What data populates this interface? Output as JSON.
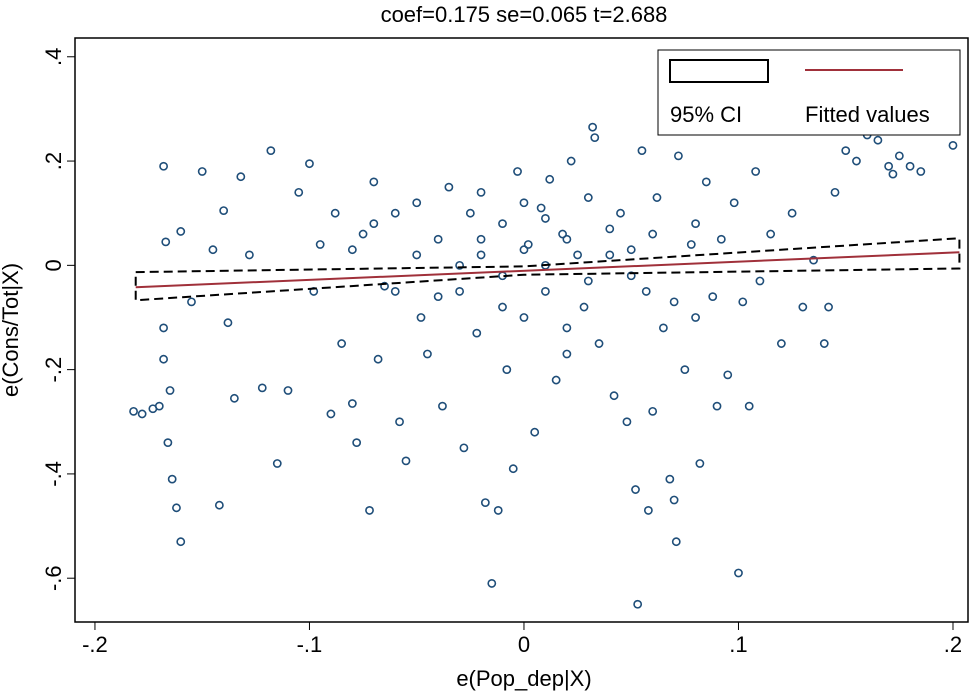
{
  "chart_data": {
    "type": "scatter",
    "title": "coef=0.175 se=0.065 t=2.688",
    "x_label": "e(Pop_dep|X)",
    "y_label": "e(Cons/Tot|X)",
    "xlim": [
      -0.2093,
      0.207
    ],
    "ylim": [
      -0.684,
      0.436
    ],
    "xticks": [
      {
        "value": -0.2,
        "label": "-.2"
      },
      {
        "value": -0.1,
        "label": "-.1"
      },
      0,
      {
        "value": 0.1,
        "label": ".1"
      },
      {
        "value": 0.2,
        "label": ".2"
      }
    ],
    "yticks": [
      {
        "value": 0.4,
        "label": ".4"
      },
      {
        "value": 0.2,
        "label": ".2"
      },
      0,
      {
        "value": -0.2,
        "label": "-.2"
      },
      {
        "value": -0.4,
        "label": "-.4"
      },
      {
        "value": -0.6,
        "label": "-.6"
      }
    ],
    "series": [
      {
        "name": "e(Cons/Tot|X)",
        "color": "#1f4e79",
        "x": [
          -0.182,
          -0.178,
          -0.173,
          -0.17,
          -0.168,
          -0.167,
          -0.168,
          -0.168,
          -0.166,
          -0.164,
          -0.162,
          -0.16,
          -0.165,
          -0.16,
          -0.155,
          -0.15,
          -0.145,
          -0.142,
          -0.14,
          -0.138,
          -0.135,
          -0.132,
          -0.128,
          -0.122,
          -0.118,
          -0.115,
          -0.11,
          -0.105,
          -0.1,
          -0.098,
          -0.095,
          -0.09,
          -0.088,
          -0.085,
          -0.08,
          -0.078,
          -0.075,
          -0.072,
          -0.07,
          -0.068,
          -0.065,
          -0.06,
          -0.058,
          -0.055,
          -0.05,
          -0.048,
          -0.045,
          -0.04,
          -0.038,
          -0.035,
          -0.03,
          -0.028,
          -0.025,
          -0.022,
          -0.02,
          -0.018,
          -0.015,
          -0.012,
          -0.01,
          -0.008,
          -0.005,
          -0.003,
          0,
          0.002,
          0.005,
          0.008,
          0.01,
          0.012,
          0.015,
          0.018,
          0.02,
          0.022,
          0.025,
          0.028,
          0.03,
          0.032,
          0.033,
          0.035,
          0.04,
          0.042,
          0.045,
          0.048,
          0.05,
          0.052,
          0.053,
          0.055,
          0.057,
          0.058,
          0.06,
          0.062,
          0.065,
          0.068,
          0.07,
          0.071,
          0.072,
          0.075,
          0.078,
          0.08,
          0.082,
          0.085,
          0.088,
          0.09,
          0.092,
          0.095,
          0.098,
          0.1,
          0.102,
          0.105,
          0.108,
          0.11,
          0.115,
          0.12,
          0.125,
          0.13,
          0.135,
          0.14,
          0.142,
          0.145,
          0.15,
          0.155,
          0.16,
          0.165,
          0.17,
          0.172,
          0.175,
          0.18,
          0.185,
          0.2,
          -0.03,
          -0.02,
          -0.01,
          0,
          0.01,
          0.02,
          0.03,
          -0.04,
          0.04,
          -0.05,
          0.05,
          -0.06,
          0.06,
          -0.07,
          0.07,
          -0.08,
          0.08,
          0,
          -0.02,
          0.02,
          0.01,
          -0.01
        ],
        "values": [
          -0.28,
          -0.285,
          -0.275,
          -0.27,
          0.19,
          0.045,
          -0.12,
          -0.18,
          -0.34,
          -0.41,
          -0.465,
          -0.53,
          -0.24,
          0.065,
          -0.07,
          0.18,
          0.03,
          -0.46,
          0.105,
          -0.11,
          -0.255,
          0.17,
          0.02,
          -0.235,
          0.22,
          -0.38,
          -0.24,
          0.14,
          0.195,
          -0.05,
          0.04,
          -0.285,
          0.1,
          -0.15,
          -0.265,
          -0.34,
          0.06,
          -0.47,
          0.16,
          -0.18,
          -0.04,
          0.1,
          -0.3,
          -0.375,
          0.12,
          -0.1,
          -0.17,
          0.05,
          -0.27,
          0.15,
          -0.05,
          -0.35,
          0.1,
          -0.13,
          0.02,
          -0.455,
          -0.61,
          -0.47,
          0.08,
          -0.2,
          -0.39,
          0.18,
          -0.1,
          0.04,
          -0.32,
          0.11,
          -0.05,
          0.165,
          -0.22,
          0.06,
          -0.12,
          0.2,
          0.02,
          -0.08,
          0.13,
          0.265,
          0.245,
          -0.15,
          0.07,
          -0.25,
          0.1,
          -0.3,
          0.03,
          -0.43,
          -0.65,
          0.22,
          -0.05,
          -0.47,
          -0.28,
          0.13,
          -0.12,
          -0.41,
          -0.45,
          -0.53,
          0.21,
          -0.2,
          0.04,
          -0.1,
          -0.38,
          0.16,
          -0.06,
          -0.27,
          0.05,
          -0.21,
          0.12,
          -0.59,
          -0.07,
          -0.27,
          0.18,
          -0.03,
          0.06,
          -0.15,
          0.1,
          -0.08,
          0.01,
          -0.15,
          -0.08,
          0.14,
          0.22,
          0.2,
          0.25,
          0.24,
          0.19,
          0.175,
          0.21,
          0.19,
          0.18,
          0.23,
          0,
          0.05,
          -0.02,
          0.03,
          0,
          0.05,
          -0.03,
          -0.06,
          0.02,
          0.02,
          -0.02,
          -0.05,
          0.06,
          0.08,
          -0.07,
          0.03,
          0.08,
          0.12,
          0.14,
          -0.17,
          0.09,
          -0.08
        ]
      },
      {
        "name": "Fitted values",
        "color": "#a0303a",
        "x": [
          -0.181,
          0.203
        ],
        "values": [
          -0.042,
          0.025
        ]
      },
      {
        "name": "95% CI",
        "color": "#000000",
        "x": [
          -0.181,
          0,
          0.203
        ],
        "upper": [
          -0.013,
          -0.002,
          0.052
        ],
        "lower": [
          -0.067,
          -0.018,
          -0.006
        ]
      }
    ]
  }
}
